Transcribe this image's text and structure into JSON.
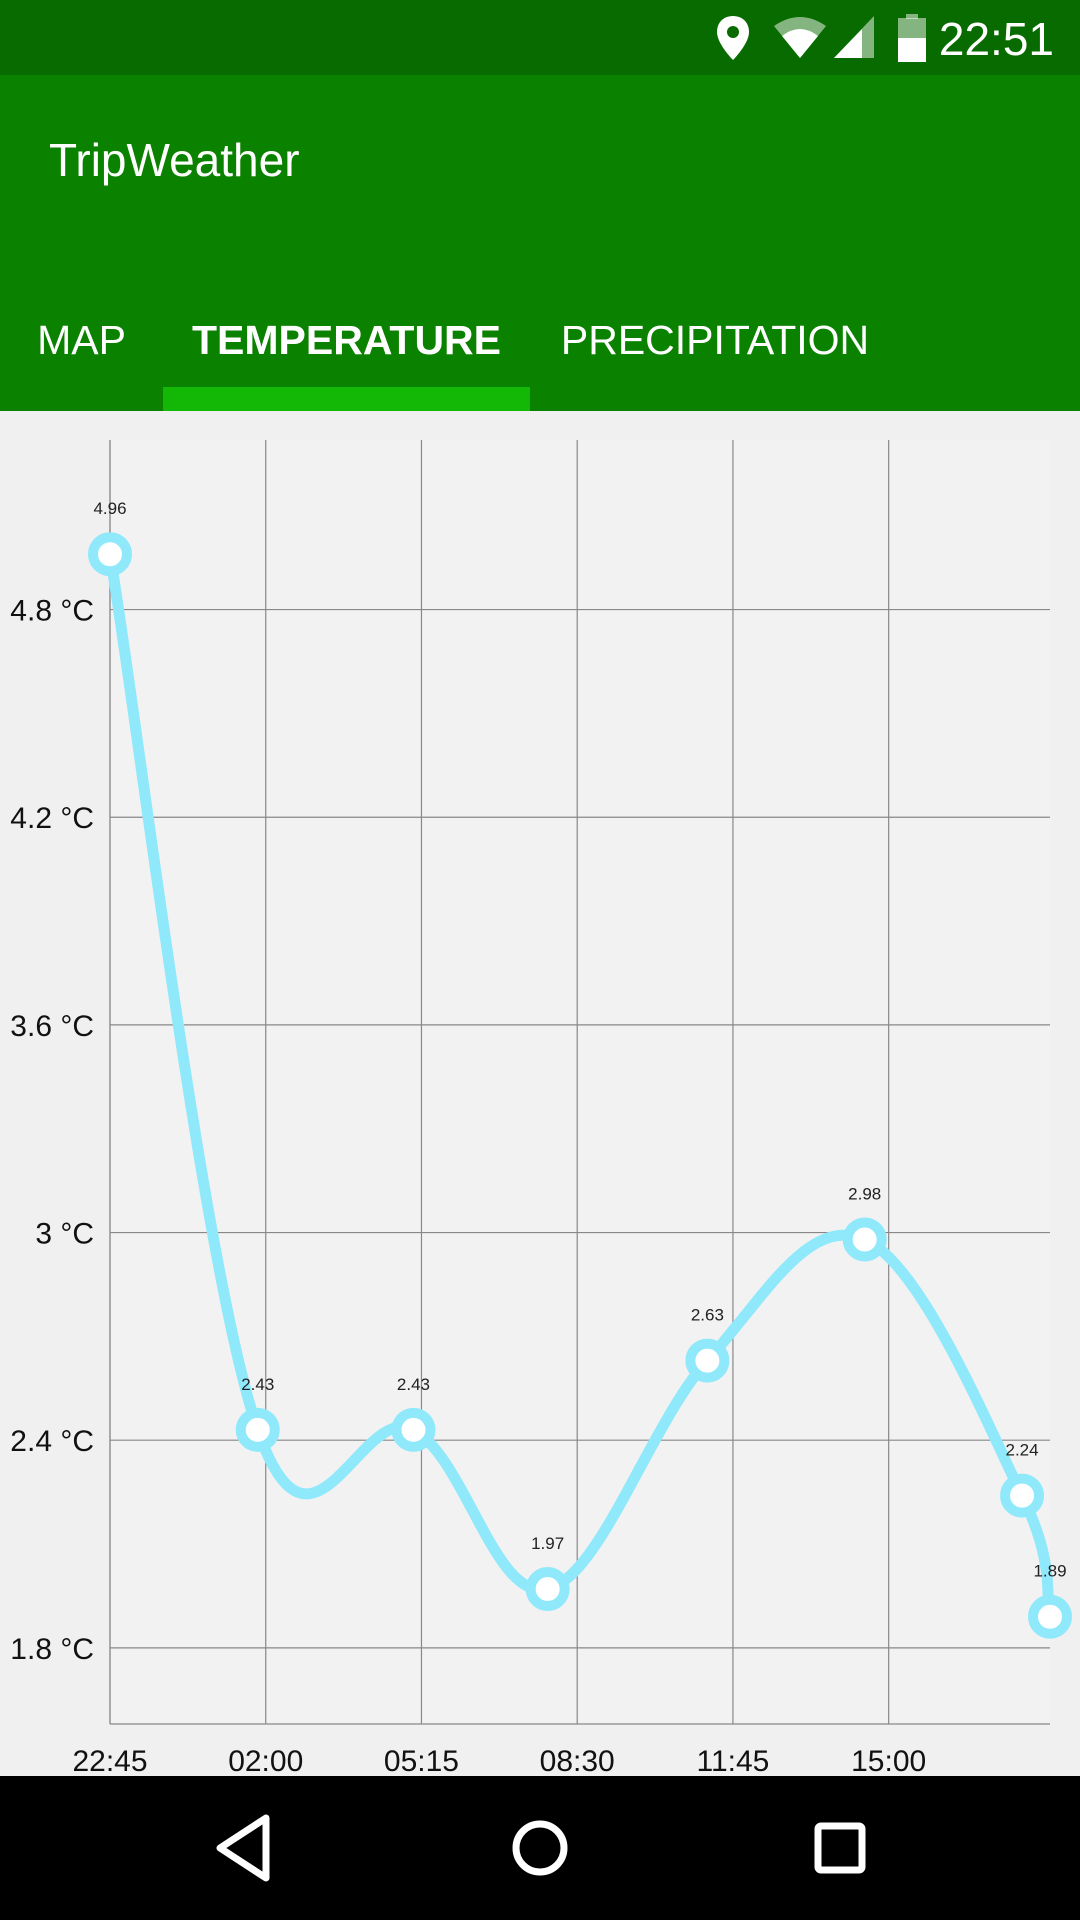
{
  "status_bar": {
    "time": "22:51",
    "icons": [
      "location-icon",
      "wifi-icon",
      "cellular-signal-icon",
      "battery-icon"
    ]
  },
  "app": {
    "title": "TripWeather",
    "tabs": [
      {
        "label": "MAP",
        "active": false
      },
      {
        "label": "TEMPERATURE",
        "active": true
      },
      {
        "label": "PRECIPITATION",
        "active": false
      }
    ]
  },
  "colors": {
    "status_bar": "#086b00",
    "app_bar": "#0b8100",
    "tab_indicator": "#13b807",
    "line": "#8fe9fb",
    "grid": "#888888",
    "chart_bg": "#f0f0f0"
  },
  "chart_data": {
    "type": "line",
    "title": "",
    "xlabel": "",
    "ylabel": "",
    "x_ticks": [
      "22:45",
      "02:00",
      "05:15",
      "08:30",
      "11:45",
      "15:00"
    ],
    "y_ticks": [
      "1.8 °C",
      "2.4 °C",
      "3 °C",
      "3.6 °C",
      "4.2 °C",
      "4.8 °C"
    ],
    "y_tick_values": [
      1.8,
      2.4,
      3.0,
      3.6,
      4.2,
      4.8
    ],
    "ylim": [
      1.58,
      5.29
    ],
    "xlim": [
      "22:45",
      "18:22"
    ],
    "grid": true,
    "series": [
      {
        "points": [
          {
            "time": "22:45",
            "value": 4.96
          },
          {
            "time": "01:50",
            "value": 2.43
          },
          {
            "time": "05:05",
            "value": 2.43
          },
          {
            "time": "07:53",
            "value": 1.97
          },
          {
            "time": "11:13",
            "value": 2.63
          },
          {
            "time": "14:30",
            "value": 2.98
          },
          {
            "time": "17:47",
            "value": 2.24
          },
          {
            "time": "18:22",
            "value": 1.89
          }
        ],
        "labels": [
          "4.96",
          "2.43",
          "2.43",
          "1.97",
          "2.63",
          "2.98",
          "2.24",
          "1.89"
        ]
      }
    ]
  },
  "nav_bar": {
    "buttons": [
      "back-icon",
      "home-icon",
      "recents-icon"
    ]
  }
}
